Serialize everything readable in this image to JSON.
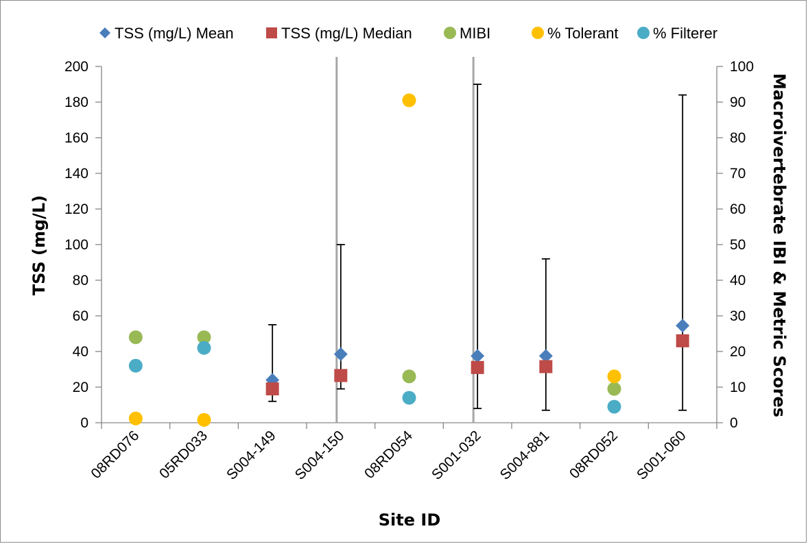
{
  "chart_data": {
    "type": "scatter",
    "categories": [
      "08RD076",
      "05RD033",
      "S004-149",
      "S004-150",
      "08RD054",
      "S001-032",
      "S004-881",
      "08RD052",
      "S001-060"
    ],
    "xlabel": "Site ID",
    "ylabel": "TSS (mg/L)",
    "y2label": "Macroivertebrate IBI & Metric Scores",
    "ylim": [
      0,
      200
    ],
    "y2lim": [
      0,
      100
    ],
    "yticks": [
      "0",
      "20",
      "40",
      "60",
      "80",
      "100",
      "120",
      "140",
      "160",
      "180",
      "200"
    ],
    "y2ticks": [
      "0",
      "10",
      "20",
      "30",
      "40",
      "50",
      "60",
      "70",
      "80",
      "90",
      "100"
    ],
    "grid": false,
    "legend_position": "top",
    "group_separators_after": [
      3,
      5
    ],
    "series": [
      {
        "name": "TSS (mg/L) Mean",
        "axis": "left",
        "marker": "diamond",
        "color": "#4a7ebb",
        "values": [
          null,
          null,
          24,
          38.5,
          null,
          37.5,
          37.5,
          null,
          54.5
        ],
        "error_low": [
          null,
          null,
          12,
          19,
          null,
          8,
          7,
          null,
          7
        ],
        "error_high": [
          null,
          null,
          55,
          100,
          null,
          190,
          92,
          null,
          184
        ]
      },
      {
        "name": "TSS (mg/L) Median",
        "axis": "left",
        "marker": "square",
        "color": "#be4b48",
        "values": [
          null,
          null,
          19,
          26.5,
          null,
          31,
          31.5,
          null,
          46
        ]
      },
      {
        "name": "MIBI",
        "axis": "right",
        "marker": "circle",
        "color": "#98b954",
        "values": [
          24,
          24,
          null,
          null,
          13,
          null,
          null,
          9.5,
          null
        ]
      },
      {
        "name": "% Tolerant",
        "axis": "right",
        "marker": "circle",
        "color": "#ffc000",
        "values": [
          1.2,
          0.8,
          null,
          null,
          90.5,
          null,
          null,
          13,
          null
        ]
      },
      {
        "name": "% Filterer",
        "axis": "right",
        "marker": "circle",
        "color": "#4bacc6",
        "values": [
          16,
          21,
          null,
          null,
          7,
          null,
          null,
          4.5,
          null
        ]
      }
    ]
  }
}
